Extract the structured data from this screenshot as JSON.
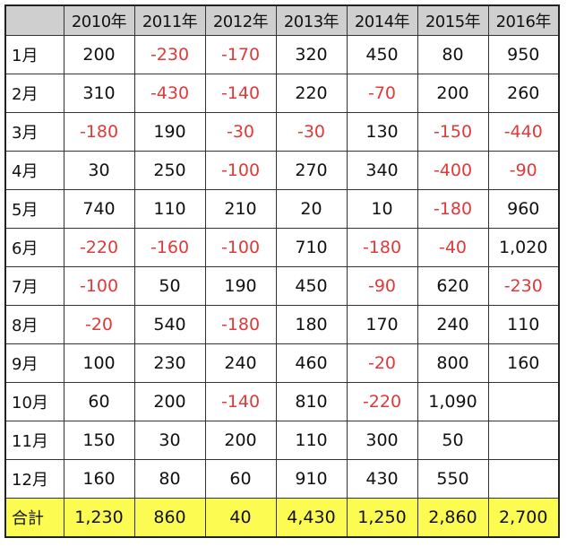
{
  "table": {
    "corner": "",
    "headers": [
      "2010年",
      "2011年",
      "2012年",
      "2013年",
      "2014年",
      "2015年",
      "2016年"
    ],
    "rows": [
      {
        "label": "1月",
        "values": [
          "200",
          "-230",
          "-170",
          "320",
          "450",
          "80",
          "950"
        ]
      },
      {
        "label": "2月",
        "values": [
          "310",
          "-430",
          "-140",
          "220",
          "-70",
          "200",
          "260"
        ]
      },
      {
        "label": "3月",
        "values": [
          "-180",
          "190",
          "-30",
          "-30",
          "130",
          "-150",
          "-440"
        ]
      },
      {
        "label": "4月",
        "values": [
          "30",
          "250",
          "-100",
          "270",
          "340",
          "-400",
          "-90"
        ]
      },
      {
        "label": "5月",
        "values": [
          "740",
          "110",
          "210",
          "20",
          "10",
          "-180",
          "960"
        ]
      },
      {
        "label": "6月",
        "values": [
          "-220",
          "-160",
          "-100",
          "710",
          "-180",
          "-40",
          "1,020"
        ]
      },
      {
        "label": "7月",
        "values": [
          "-100",
          "50",
          "190",
          "450",
          "-90",
          "620",
          "-230"
        ]
      },
      {
        "label": "8月",
        "values": [
          "-20",
          "540",
          "-180",
          "180",
          "170",
          "240",
          "110"
        ]
      },
      {
        "label": "9月",
        "values": [
          "100",
          "230",
          "240",
          "460",
          "-20",
          "800",
          "160"
        ]
      },
      {
        "label": "10月",
        "values": [
          "60",
          "200",
          "-140",
          "810",
          "-220",
          "1,090",
          ""
        ]
      },
      {
        "label": "11月",
        "values": [
          "150",
          "30",
          "200",
          "110",
          "300",
          "50",
          ""
        ]
      },
      {
        "label": "12月",
        "values": [
          "160",
          "80",
          "60",
          "910",
          "430",
          "550",
          ""
        ]
      }
    ],
    "total": {
      "label": "合計",
      "values": [
        "1,230",
        "860",
        "40",
        "4,430",
        "1,250",
        "2,860",
        "2,700"
      ]
    }
  },
  "colors": {
    "negative": "#e0393a",
    "header_bg": "#cfcfcf",
    "total_bg": "#fbfb52"
  }
}
